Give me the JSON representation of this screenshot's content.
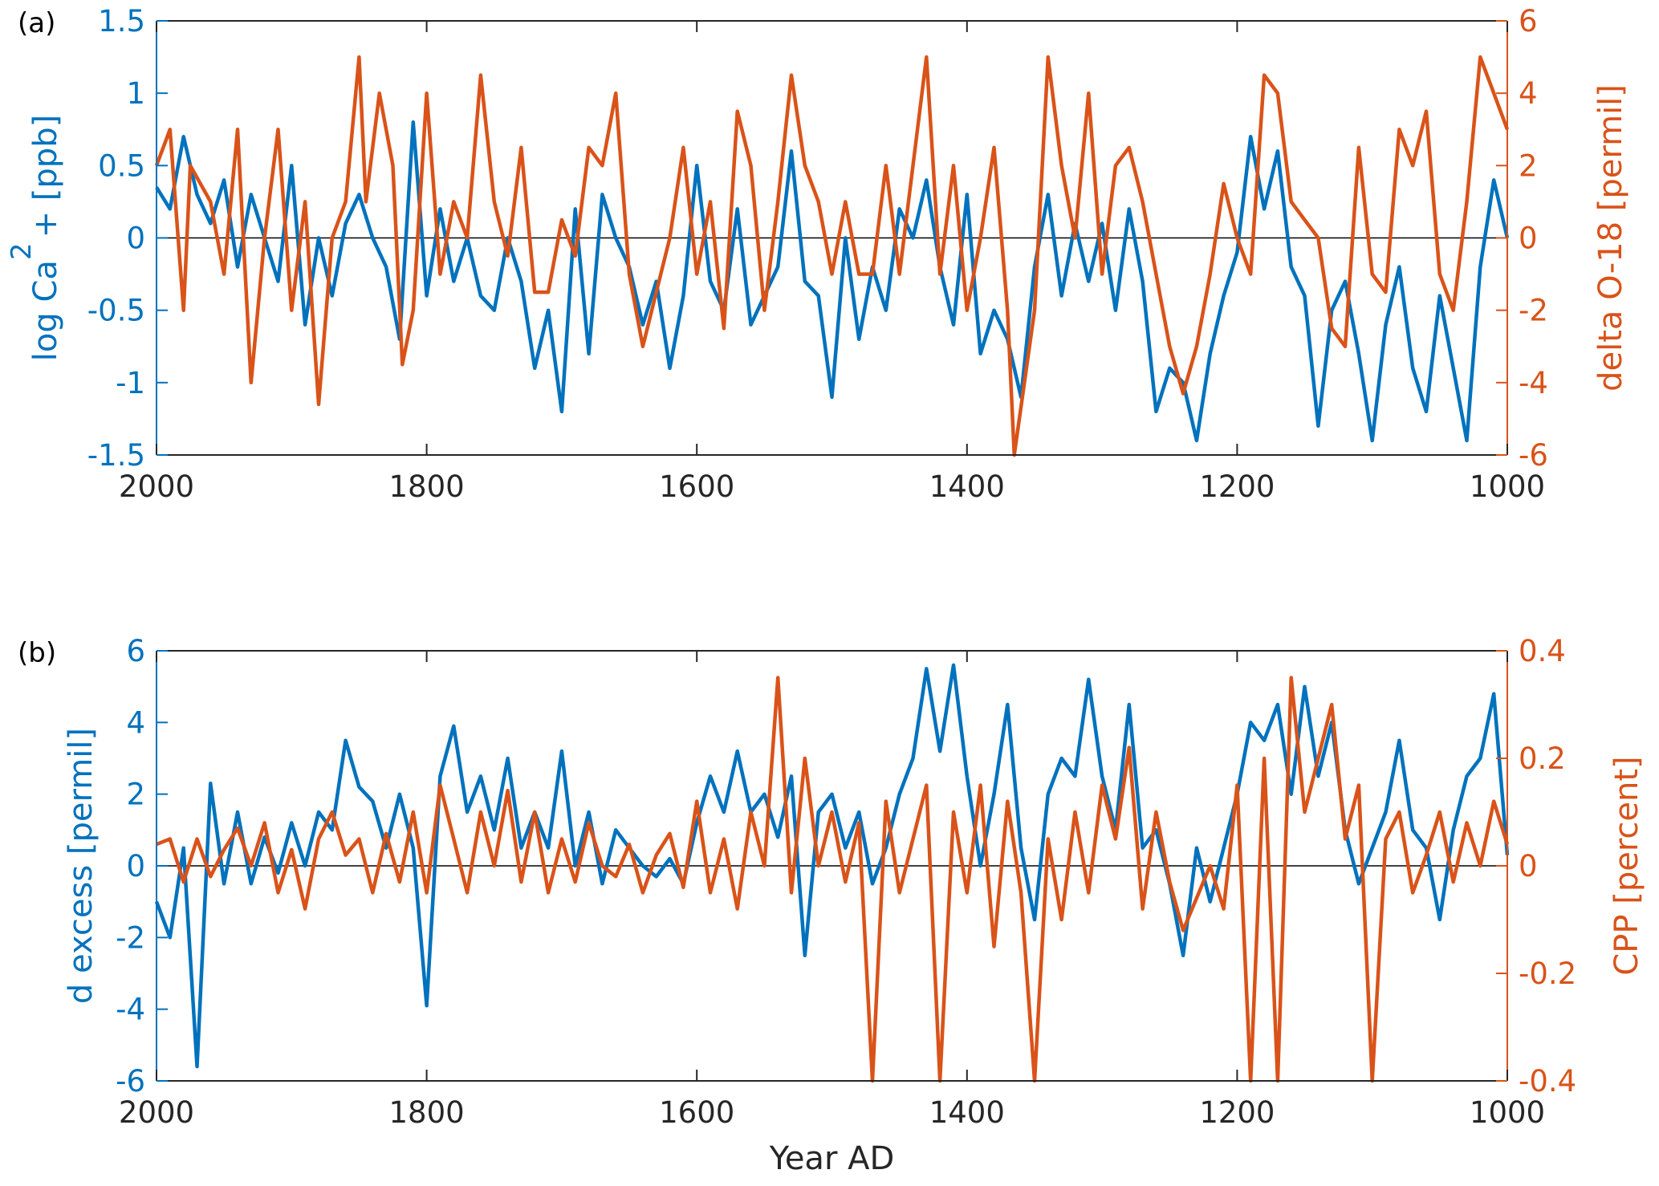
{
  "chart_data": [
    {
      "panel_label": "(a)",
      "type": "line",
      "xlabel": "",
      "xlim": [
        2000,
        1000
      ],
      "x_reversed": true,
      "xticks": [
        2000,
        1800,
        1600,
        1400,
        1200,
        1000
      ],
      "xtick_labels": [
        "2000",
        "1800",
        "1600",
        "1400",
        "1200",
        "1000"
      ],
      "zero_line": true,
      "left_axis": {
        "label": "log Ca²+ [ppb]",
        "label_parts": [
          "log Ca",
          "2",
          "+ [ppb]"
        ],
        "ylim": [
          -1.5,
          1.5
        ],
        "ticks": [
          -1.5,
          -1,
          -0.5,
          0,
          0.5,
          1,
          1.5
        ],
        "tick_labels": [
          "-1.5",
          "-1",
          "-0.5",
          "0",
          "0.5",
          "1",
          "1.5"
        ],
        "color": "#0072BD"
      },
      "right_axis": {
        "label": "delta O-18 [permil]",
        "ylim": [
          -6,
          6
        ],
        "ticks": [
          -6,
          -4,
          -2,
          0,
          2,
          4,
          6
        ],
        "tick_labels": [
          "-6",
          "-4",
          "-2",
          "0",
          "2",
          "4",
          "6"
        ],
        "color": "#D95319"
      },
      "series": [
        {
          "name": "log Ca2+",
          "axis": "left",
          "color": "#0072BD",
          "x": [
            2000,
            1990,
            1980,
            1970,
            1960,
            1950,
            1940,
            1930,
            1920,
            1910,
            1900,
            1890,
            1880,
            1870,
            1860,
            1850,
            1840,
            1830,
            1820,
            1810,
            1800,
            1790,
            1780,
            1770,
            1760,
            1750,
            1740,
            1730,
            1720,
            1710,
            1700,
            1690,
            1680,
            1670,
            1660,
            1650,
            1640,
            1630,
            1620,
            1610,
            1600,
            1590,
            1580,
            1570,
            1560,
            1550,
            1540,
            1530,
            1520,
            1510,
            1500,
            1490,
            1480,
            1470,
            1460,
            1450,
            1440,
            1430,
            1420,
            1410,
            1400,
            1390,
            1380,
            1370,
            1360,
            1350,
            1340,
            1330,
            1320,
            1310,
            1300,
            1290,
            1280,
            1270,
            1260,
            1250,
            1240,
            1230,
            1220,
            1210,
            1200,
            1190,
            1180,
            1170,
            1160,
            1150,
            1140,
            1130,
            1120,
            1110,
            1100,
            1090,
            1080,
            1070,
            1060,
            1050,
            1040,
            1030,
            1020,
            1010,
            1000
          ],
          "y": [
            0.35,
            0.2,
            0.7,
            0.3,
            0.1,
            0.4,
            -0.2,
            0.3,
            0.0,
            -0.3,
            0.5,
            -0.6,
            0.0,
            -0.4,
            0.1,
            0.3,
            0.0,
            -0.2,
            -0.7,
            0.8,
            -0.4,
            0.2,
            -0.3,
            0.0,
            -0.4,
            -0.5,
            0.0,
            -0.3,
            -0.9,
            -0.5,
            -1.2,
            0.2,
            -0.8,
            0.3,
            0.0,
            -0.2,
            -0.6,
            -0.3,
            -0.9,
            -0.4,
            0.5,
            -0.3,
            -0.5,
            0.2,
            -0.6,
            -0.4,
            -0.2,
            0.6,
            -0.3,
            -0.4,
            -1.1,
            0.0,
            -0.7,
            -0.2,
            -0.5,
            0.2,
            0.0,
            0.4,
            -0.2,
            -0.6,
            0.3,
            -0.8,
            -0.5,
            -0.7,
            -1.1,
            -0.2,
            0.3,
            -0.4,
            0.1,
            -0.3,
            0.1,
            -0.5,
            0.2,
            -0.3,
            -1.2,
            -0.9,
            -1.0,
            -1.4,
            -0.8,
            -0.4,
            -0.1,
            0.7,
            0.2,
            0.6,
            -0.2,
            -0.4,
            -1.3,
            -0.5,
            -0.3,
            -0.8,
            -1.4,
            -0.6,
            -0.2,
            -0.9,
            -1.2,
            -0.4,
            -0.9,
            -1.4,
            -0.2,
            0.4,
            0.0
          ]
        },
        {
          "name": "delta O-18",
          "axis": "right",
          "color": "#D95319",
          "x": [
            2000,
            1990,
            1980,
            1975,
            1960,
            1950,
            1940,
            1930,
            1920,
            1910,
            1900,
            1890,
            1880,
            1870,
            1860,
            1850,
            1845,
            1835,
            1825,
            1818,
            1810,
            1800,
            1790,
            1780,
            1770,
            1760,
            1750,
            1740,
            1730,
            1720,
            1710,
            1700,
            1690,
            1680,
            1670,
            1660,
            1650,
            1640,
            1630,
            1620,
            1610,
            1600,
            1590,
            1580,
            1570,
            1560,
            1550,
            1540,
            1530,
            1520,
            1510,
            1500,
            1490,
            1480,
            1470,
            1460,
            1450,
            1440,
            1430,
            1420,
            1410,
            1400,
            1390,
            1380,
            1370,
            1365,
            1350,
            1340,
            1330,
            1320,
            1310,
            1300,
            1290,
            1280,
            1270,
            1260,
            1250,
            1240,
            1230,
            1220,
            1210,
            1200,
            1190,
            1180,
            1170,
            1160,
            1150,
            1140,
            1130,
            1120,
            1110,
            1100,
            1090,
            1080,
            1070,
            1060,
            1050,
            1040,
            1030,
            1020,
            1010,
            1000
          ],
          "y": [
            2,
            3,
            -2,
            2,
            1,
            -1,
            3,
            -4,
            0,
            3,
            -2,
            1,
            -4.6,
            0,
            1,
            5,
            1,
            4,
            2,
            -3.5,
            -2,
            4,
            -1,
            1,
            0,
            4.5,
            1,
            -0.5,
            2.5,
            -1.5,
            -1.5,
            0.5,
            -0.5,
            2.5,
            2,
            4,
            -1,
            -3,
            -1.5,
            0,
            2.5,
            -1,
            1,
            -2.5,
            3.5,
            2,
            -2,
            1,
            4.5,
            2,
            1,
            -1,
            1,
            -1,
            -1,
            2,
            -1,
            2,
            5,
            -1,
            2,
            -2,
            0,
            2.5,
            -2,
            -6,
            -2,
            5,
            2,
            0,
            4,
            -1,
            2,
            2.5,
            1,
            -1,
            -3,
            -4.3,
            -3,
            -1,
            1.5,
            0,
            -1,
            4.5,
            4,
            1,
            0.5,
            0,
            -2.5,
            -3,
            2.5,
            -1,
            -1.5,
            3,
            2,
            3.5,
            -1,
            -2,
            1,
            5,
            4,
            3
          ]
        }
      ]
    },
    {
      "panel_label": "(b)",
      "type": "line",
      "xlabel": "Year AD",
      "xlim": [
        2000,
        1000
      ],
      "x_reversed": true,
      "xticks": [
        2000,
        1800,
        1600,
        1400,
        1200,
        1000
      ],
      "xtick_labels": [
        "2000",
        "1800",
        "1600",
        "1400",
        "1200",
        "1000"
      ],
      "zero_line": true,
      "left_axis": {
        "label": "d excess [permil]",
        "ylim": [
          -6,
          6
        ],
        "ticks": [
          -6,
          -4,
          -2,
          0,
          2,
          4,
          6
        ],
        "tick_labels": [
          "-6",
          "-4",
          "-2",
          "0",
          "2",
          "4",
          "6"
        ],
        "color": "#0072BD"
      },
      "right_axis": {
        "label": "CPP [percent]",
        "ylim": [
          -0.4,
          0.4
        ],
        "ticks": [
          -0.4,
          -0.2,
          0,
          0.2,
          0.4
        ],
        "tick_labels": [
          "-0.4",
          "-0.2",
          "0",
          "0.2",
          "0.4"
        ],
        "color": "#D95319"
      },
      "series": [
        {
          "name": "d excess",
          "axis": "left",
          "color": "#0072BD",
          "x": [
            2000,
            1990,
            1980,
            1970,
            1960,
            1950,
            1940,
            1930,
            1920,
            1910,
            1900,
            1890,
            1880,
            1870,
            1860,
            1850,
            1840,
            1830,
            1820,
            1810,
            1800,
            1790,
            1780,
            1770,
            1760,
            1750,
            1740,
            1730,
            1720,
            1710,
            1700,
            1690,
            1680,
            1670,
            1660,
            1650,
            1640,
            1630,
            1620,
            1610,
            1600,
            1590,
            1580,
            1570,
            1560,
            1550,
            1540,
            1530,
            1520,
            1510,
            1500,
            1490,
            1480,
            1470,
            1460,
            1450,
            1440,
            1430,
            1420,
            1410,
            1400,
            1390,
            1380,
            1370,
            1360,
            1350,
            1340,
            1330,
            1320,
            1310,
            1300,
            1290,
            1280,
            1270,
            1260,
            1250,
            1240,
            1230,
            1220,
            1210,
            1200,
            1190,
            1180,
            1170,
            1160,
            1150,
            1140,
            1130,
            1120,
            1110,
            1100,
            1090,
            1080,
            1070,
            1060,
            1050,
            1040,
            1030,
            1020,
            1010,
            1000
          ],
          "y": [
            -1,
            -2,
            0.5,
            -5.6,
            2.3,
            -0.5,
            1.5,
            -0.5,
            0.8,
            -0.2,
            1.2,
            0,
            1.5,
            1.0,
            3.5,
            2.2,
            1.8,
            0.5,
            2.0,
            0.5,
            -3.9,
            2.5,
            3.9,
            1.5,
            2.5,
            1.0,
            3.0,
            0.5,
            1.5,
            0.5,
            3.2,
            0,
            1.5,
            -0.5,
            1.0,
            0.5,
            0,
            -0.3,
            0.2,
            -0.5,
            1.2,
            2.5,
            1.5,
            3.2,
            1.5,
            2.0,
            0.8,
            2.5,
            -2.5,
            1.5,
            2.0,
            0.5,
            1.5,
            -0.5,
            0.5,
            2.0,
            3.0,
            5.5,
            3.2,
            5.6,
            2.5,
            0,
            2.0,
            4.5,
            0.5,
            -1.5,
            2.0,
            3.0,
            2.5,
            5.2,
            2.5,
            1.0,
            4.5,
            0.5,
            1.0,
            -0.5,
            -2.5,
            0.5,
            -1.0,
            0.5,
            2.0,
            4.0,
            3.5,
            4.5,
            2.0,
            5.0,
            2.5,
            4.0,
            1.0,
            -0.5,
            0.5,
            1.5,
            3.5,
            1.0,
            0.5,
            -1.5,
            1.0,
            2.5,
            3.0,
            4.8,
            0.3
          ]
        },
        {
          "name": "CPP",
          "axis": "right",
          "color": "#D95319",
          "x": [
            2000,
            1990,
            1980,
            1970,
            1960,
            1950,
            1940,
            1930,
            1920,
            1910,
            1900,
            1890,
            1880,
            1870,
            1860,
            1850,
            1840,
            1830,
            1820,
            1810,
            1800,
            1790,
            1780,
            1770,
            1760,
            1750,
            1740,
            1730,
            1720,
            1710,
            1700,
            1690,
            1680,
            1670,
            1660,
            1650,
            1640,
            1630,
            1620,
            1610,
            1600,
            1590,
            1580,
            1570,
            1560,
            1550,
            1540,
            1530,
            1520,
            1510,
            1500,
            1490,
            1480,
            1470,
            1460,
            1450,
            1440,
            1430,
            1420,
            1410,
            1400,
            1390,
            1380,
            1370,
            1360,
            1350,
            1340,
            1330,
            1320,
            1310,
            1300,
            1290,
            1280,
            1270,
            1260,
            1250,
            1240,
            1230,
            1220,
            1210,
            1200,
            1190,
            1180,
            1170,
            1160,
            1150,
            1140,
            1130,
            1120,
            1110,
            1100,
            1090,
            1080,
            1070,
            1060,
            1050,
            1040,
            1030,
            1020,
            1010,
            1000
          ],
          "y": [
            0.04,
            0.05,
            -0.03,
            0.05,
            -0.02,
            0.03,
            0.07,
            0.0,
            0.08,
            -0.05,
            0.03,
            -0.08,
            0.05,
            0.1,
            0.02,
            0.05,
            -0.05,
            0.06,
            -0.03,
            0.1,
            -0.05,
            0.15,
            0.05,
            -0.05,
            0.1,
            0.0,
            0.14,
            -0.03,
            0.1,
            -0.05,
            0.05,
            -0.03,
            0.08,
            0.0,
            -0.02,
            0.04,
            -0.05,
            0.02,
            0.06,
            -0.04,
            0.12,
            -0.05,
            0.05,
            -0.08,
            0.1,
            0.0,
            0.35,
            -0.05,
            0.2,
            0.0,
            0.1,
            -0.03,
            0.08,
            -0.4,
            0.12,
            -0.05,
            0.05,
            0.15,
            -0.4,
            0.1,
            -0.05,
            0.15,
            -0.15,
            0.12,
            -0.05,
            -0.4,
            0.05,
            -0.1,
            0.1,
            -0.05,
            0.15,
            0.05,
            0.22,
            -0.08,
            0.1,
            -0.03,
            -0.12,
            -0.06,
            0.0,
            -0.08,
            0.15,
            -0.4,
            0.2,
            -0.4,
            0.35,
            0.1,
            0.2,
            0.3,
            0.05,
            0.15,
            -0.4,
            0.05,
            0.1,
            -0.05,
            0.02,
            0.1,
            -0.03,
            0.08,
            0.0,
            0.12,
            0.04
          ]
        }
      ]
    }
  ]
}
